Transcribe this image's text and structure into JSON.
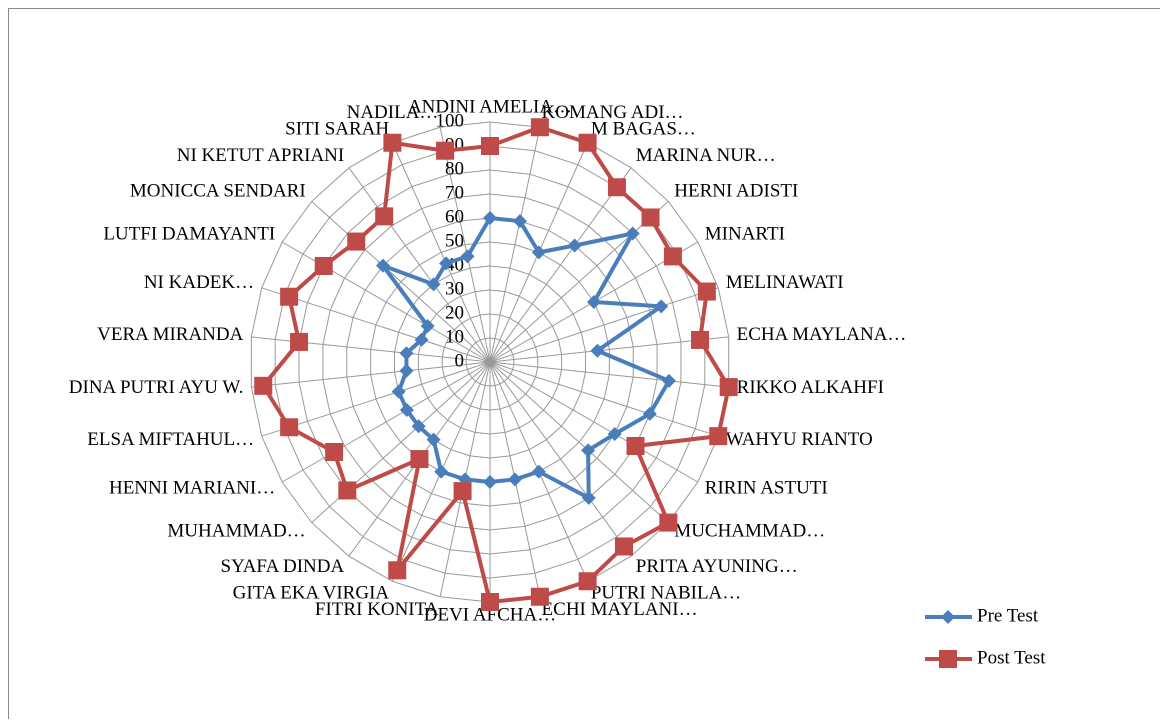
{
  "chart_data": {
    "type": "radar",
    "categories": [
      "ANDINI AMELIA…",
      "KOMANG ADI…",
      "M BAGAS…",
      "MARINA NUR…",
      "HERNI ADISTI",
      "MINARTI",
      "MELINAWATI",
      "ECHA MAYLANA…",
      "RIKKO ALKAHFI",
      "WAHYU RIANTO",
      "RIRIN ASTUTI",
      "MUCHAMMAD…",
      "PRITA AYUNING…",
      "PUTRI NABILA…",
      "ECHI MAYLANI…",
      "DEVI AFCHA…",
      "FITRI KONITA",
      "GITA EKA VIRGIA",
      "SYAFA DINDA",
      "MUHAMMAD…",
      "HENNI MARIANI…",
      "ELSA MIFTAHUL…",
      "DINA PUTRI AYU W.",
      "VERA MIRANDA",
      "NI KADEK…",
      "LUTFI DAMAYANTI",
      "MONICCA SENDARI",
      "NI KETUT APRIANI",
      "SITI SARAH",
      "NADILA…"
    ],
    "series": [
      {
        "name": "Pre Test",
        "color": "#4a7ebb",
        "values": [
          60,
          60,
          50,
          60,
          80,
          50,
          75,
          45,
          75,
          70,
          60,
          55,
          70,
          50,
          50,
          50,
          50,
          50,
          40,
          40,
          40,
          40,
          35,
          35,
          30,
          30,
          60,
          40,
          45,
          45
        ]
      },
      {
        "name": "Post Test",
        "color": "#be4b48",
        "values": [
          90,
          100,
          100,
          90,
          90,
          88,
          95,
          88,
          100,
          100,
          70,
          100,
          95,
          100,
          100,
          100,
          55,
          95,
          50,
          80,
          75,
          88,
          95,
          80,
          88,
          80,
          75,
          75,
          100,
          90
        ]
      }
    ],
    "ylim": [
      0,
      100
    ],
    "yticks": [
      0,
      10,
      20,
      30,
      40,
      50,
      60,
      70,
      80,
      90,
      100
    ],
    "grid": true,
    "legend": "right"
  }
}
